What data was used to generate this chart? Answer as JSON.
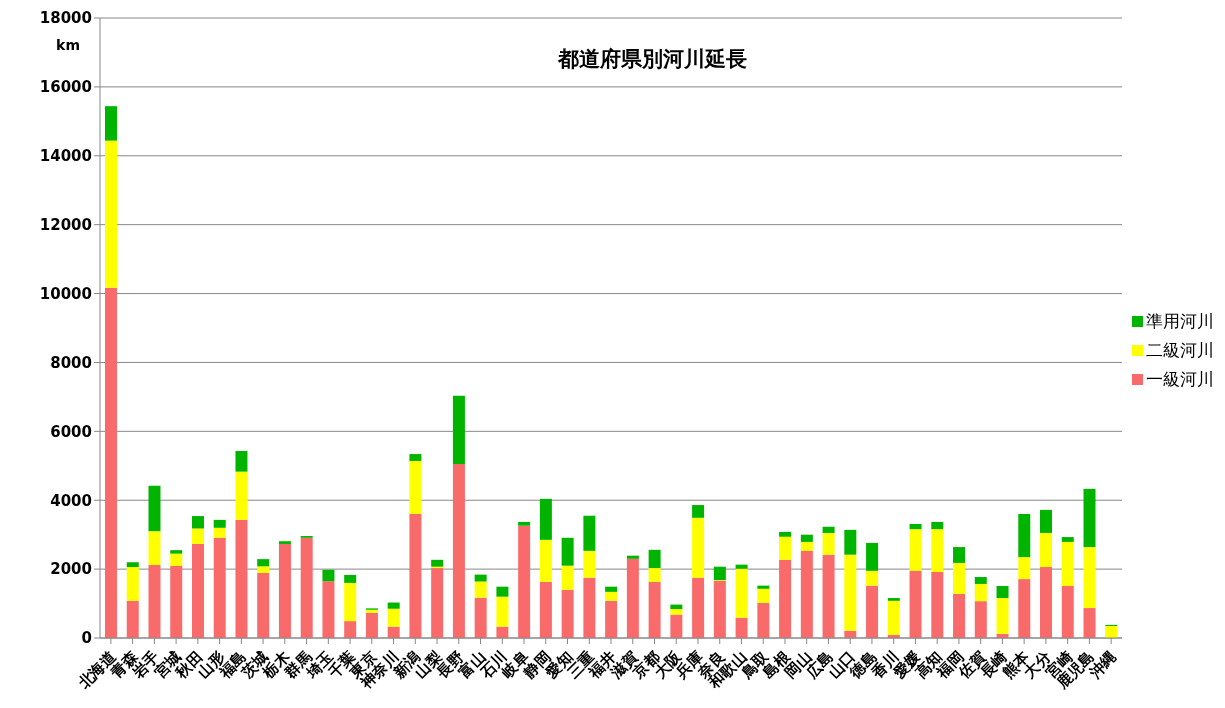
{
  "chart_data": {
    "type": "bar",
    "title": "都道府県別河川延長",
    "ylabel": "km",
    "stacked": true,
    "grid": "y",
    "legend": "right",
    "categories": [
      "北海道",
      "青森",
      "岩手",
      "宮城",
      "秋田",
      "山形",
      "福島",
      "茨城",
      "栃木",
      "群馬",
      "埼玉",
      "千葉",
      "東京",
      "神奈川",
      "新潟",
      "山梨",
      "長野",
      "富山",
      "石川",
      "岐阜",
      "静岡",
      "愛知",
      "三重",
      "福井",
      "滋賀",
      "京都",
      "大阪",
      "兵庫",
      "奈良",
      "和歌山",
      "鳥取",
      "島根",
      "岡山",
      "広島",
      "山口",
      "徳島",
      "香川",
      "愛媛",
      "高知",
      "福岡",
      "佐賀",
      "長崎",
      "熊本",
      "大分",
      "宮崎",
      "鹿児島",
      "沖縄"
    ],
    "ylim": [
      0,
      18000
    ],
    "yticks": [
      0,
      2000,
      4000,
      6000,
      8000,
      10000,
      12000,
      14000,
      16000,
      18000
    ],
    "series": [
      {
        "name": "一級河川",
        "color": "#f96b6b",
        "values": [
          10170,
          1080,
          2120,
          2090,
          2730,
          2910,
          3430,
          1890,
          2730,
          2910,
          1650,
          490,
          730,
          330,
          3600,
          2030,
          5050,
          1170,
          330,
          3260,
          1630,
          1400,
          1750,
          1080,
          2300,
          1630,
          680,
          1750,
          1660,
          590,
          1020,
          2270,
          2530,
          2420,
          210,
          1520,
          90,
          1950,
          1920,
          1280,
          1070,
          120,
          1710,
          2060,
          1510,
          870,
          0
        ]
      },
      {
        "name": "二級河川",
        "color": "#ffff00",
        "values": [
          4270,
          980,
          980,
          360,
          450,
          290,
          1400,
          190,
          0,
          0,
          0,
          1110,
          90,
          520,
          1540,
          40,
          0,
          470,
          870,
          0,
          1220,
          700,
          780,
          260,
          0,
          400,
          160,
          1740,
          20,
          1420,
          410,
          670,
          260,
          630,
          2210,
          430,
          990,
          1210,
          1240,
          900,
          500,
          1040,
          640,
          990,
          1280,
          1770,
          350
        ]
      },
      {
        "name": "準用河川",
        "color": "#00b400",
        "values": [
          1000,
          140,
          1320,
          100,
          360,
          230,
          600,
          210,
          80,
          50,
          330,
          230,
          40,
          180,
          200,
          200,
          1980,
          200,
          290,
          110,
          1190,
          810,
          1020,
          150,
          90,
          530,
          130,
          370,
          390,
          120,
          90,
          140,
          210,
          180,
          720,
          810,
          80,
          150,
          210,
          460,
          200,
          350,
          1250,
          670,
          140,
          1690,
          30
        ]
      }
    ]
  }
}
